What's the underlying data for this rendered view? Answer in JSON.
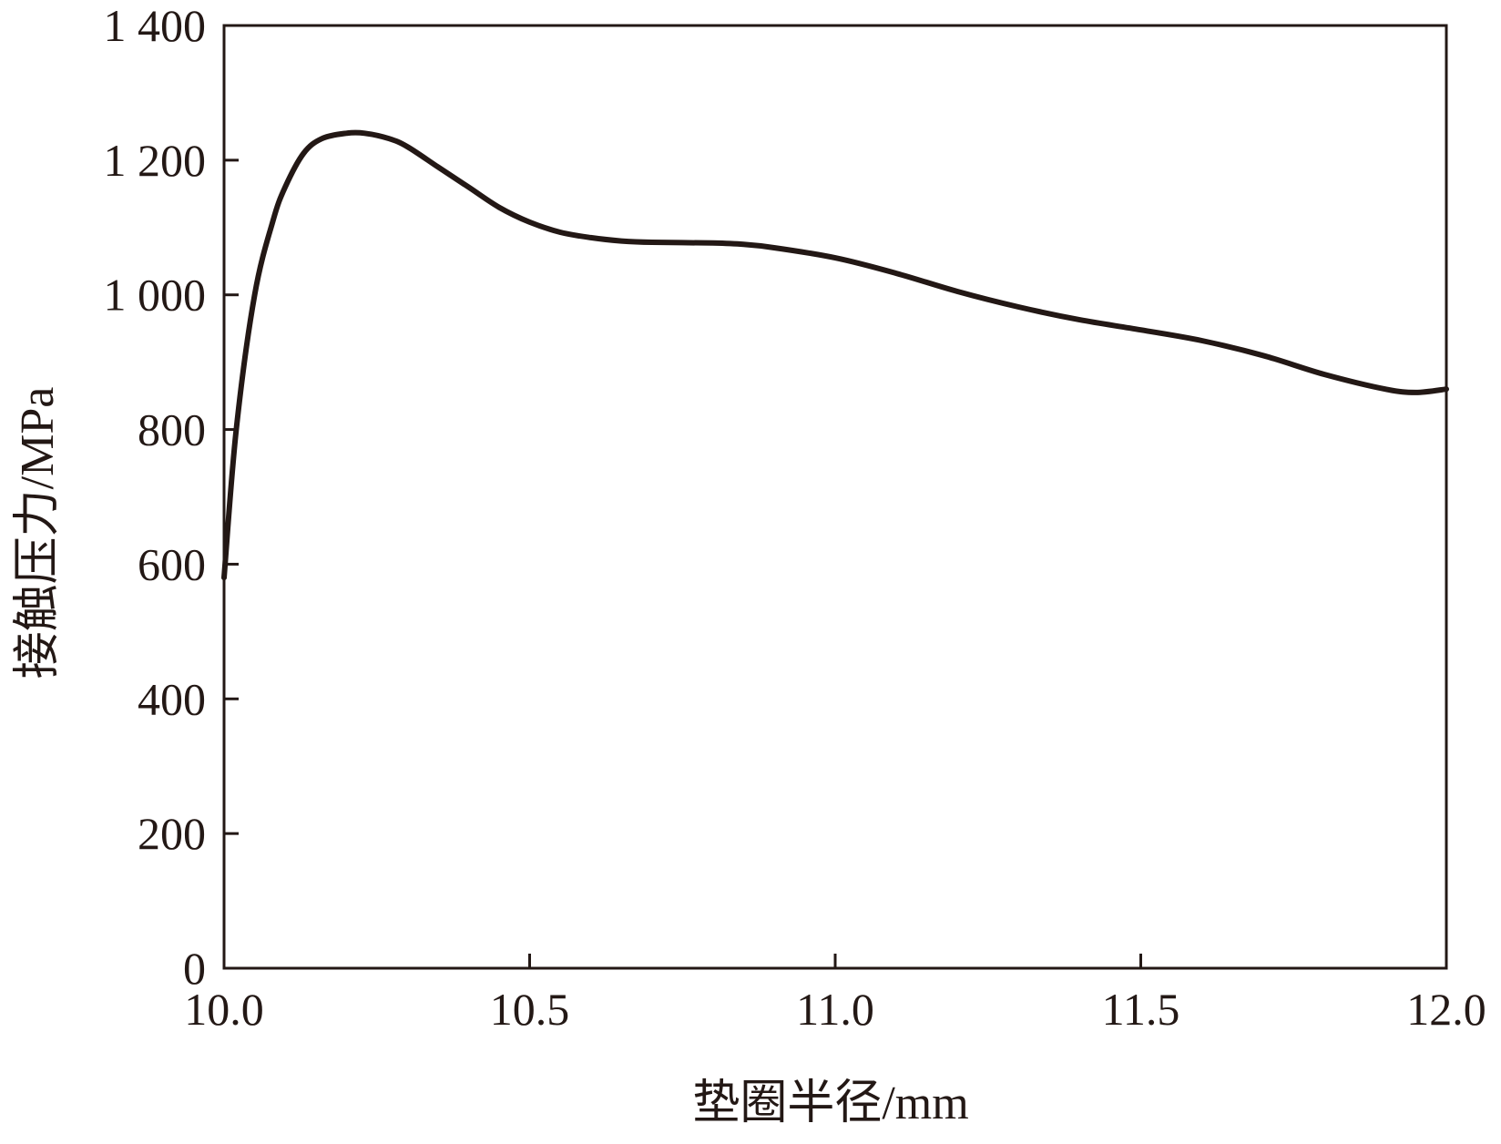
{
  "chart_data": {
    "type": "line",
    "xlabel": "垫圈半径/mm",
    "ylabel": "接触压力/MPa",
    "xlim": [
      10.0,
      12.0
    ],
    "ylim": [
      0,
      1400
    ],
    "x_ticks": [
      10.0,
      10.5,
      11.0,
      11.5,
      12.0
    ],
    "x_tick_labels": [
      "10.0",
      "10.5",
      "11.0",
      "11.5",
      "12.0"
    ],
    "y_ticks": [
      0,
      200,
      400,
      600,
      800,
      1000,
      1200,
      1400
    ],
    "y_tick_labels": [
      "0",
      "200",
      "400",
      "600",
      "800",
      "1 000",
      "1 200",
      "1 400"
    ],
    "grid": false,
    "line_color": "#231815",
    "series": [
      {
        "x": [
          10.0,
          10.02,
          10.05,
          10.08,
          10.1,
          10.13,
          10.16,
          10.2,
          10.23,
          10.27,
          10.3,
          10.35,
          10.4,
          10.45,
          10.5,
          10.55,
          10.6,
          10.65,
          10.7,
          10.8,
          10.85,
          10.9,
          11.0,
          11.1,
          11.2,
          11.3,
          11.4,
          11.5,
          11.6,
          11.7,
          11.8,
          11.9,
          11.95,
          12.0
        ],
        "y": [
          580,
          800,
          1000,
          1110,
          1160,
          1210,
          1232,
          1240,
          1240,
          1232,
          1220,
          1190,
          1160,
          1130,
          1108,
          1093,
          1085,
          1080,
          1078,
          1077,
          1075,
          1070,
          1055,
          1032,
          1005,
          982,
          963,
          948,
          932,
          910,
          882,
          860,
          855,
          860
        ]
      }
    ]
  }
}
